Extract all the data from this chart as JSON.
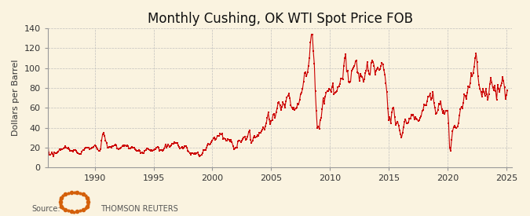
{
  "title": "Monthly Cushing, OK WTI Spot Price FOB",
  "ylabel": "Dollars per Barrel",
  "background_color": "#faf3e0",
  "plot_background_color": "#faf3e0",
  "line_color": "#cc0000",
  "marker_color": "#cc0000",
  "grid_color": "#bbbbbb",
  "title_fontsize": 12,
  "label_fontsize": 8,
  "tick_fontsize": 8,
  "xlim": [
    1986.0,
    2025.5
  ],
  "ylim": [
    0,
    140
  ],
  "yticks": [
    0,
    20,
    40,
    60,
    80,
    100,
    120,
    140
  ],
  "xticks": [
    1990,
    1995,
    2000,
    2005,
    2010,
    2015,
    2020,
    2025
  ],
  "prices": [
    25.9,
    15.5,
    12.6,
    12.8,
    15.0,
    13.5,
    11.6,
    15.1,
    14.9,
    14.9,
    15.2,
    16.1,
    18.7,
    17.8,
    18.3,
    18.6,
    19.5,
    19.9,
    21.4,
    20.3,
    19.5,
    19.9,
    18.9,
    17.3,
    17.0,
    16.8,
    16.2,
    17.9,
    17.4,
    17.0,
    15.6,
    14.9,
    13.7,
    13.4,
    14.1,
    16.3,
    17.9,
    17.9,
    19.5,
    20.1,
    20.0,
    20.0,
    20.1,
    18.5,
    19.6,
    20.0,
    20.2,
    21.1,
    22.8,
    22.0,
    20.4,
    18.5,
    17.0,
    16.9,
    18.7,
    27.3,
    33.5,
    35.2,
    32.2,
    27.3,
    25.2,
    20.4,
    19.9,
    20.8,
    20.9,
    20.3,
    21.6,
    21.9,
    22.4,
    23.2,
    22.5,
    19.1,
    18.8,
    19.1,
    19.4,
    20.3,
    21.4,
    22.3,
    22.0,
    22.3,
    21.9,
    22.6,
    21.8,
    19.5,
    19.0,
    20.0,
    20.5,
    20.3,
    19.9,
    18.9,
    17.9,
    17.3,
    16.9,
    17.6,
    16.7,
    14.4,
    15.0,
    14.7,
    14.8,
    17.0,
    17.9,
    19.0,
    19.6,
    18.4,
    17.4,
    17.2,
    18.0,
    17.1,
    18.0,
    18.6,
    18.5,
    19.9,
    20.8,
    19.9,
    17.0,
    18.0,
    17.6,
    17.0,
    18.0,
    19.1,
    22.9,
    20.0,
    21.3,
    23.5,
    21.2,
    22.0,
    22.7,
    24.0,
    23.8,
    25.6,
    24.5,
    25.2,
    25.1,
    22.2,
    20.5,
    19.3,
    19.9,
    20.8,
    19.6,
    19.9,
    21.3,
    21.9,
    20.2,
    17.0,
    15.9,
    14.8,
    13.1,
    14.6,
    14.9,
    14.1,
    14.2,
    13.4,
    14.9,
    15.0,
    12.6,
    11.3,
    12.0,
    13.0,
    14.7,
    17.6,
    17.9,
    17.9,
    20.0,
    22.5,
    23.8,
    22.9,
    24.4,
    25.6,
    27.2,
    29.4,
    30.3,
    27.7,
    28.8,
    32.0,
    31.7,
    31.8,
    33.9,
    33.1,
    34.4,
    28.4,
    29.6,
    28.7,
    27.2,
    27.5,
    28.6,
    27.6,
    26.5,
    27.7,
    25.7,
    22.0,
    18.8,
    19.4,
    19.7,
    20.4,
    26.3,
    27.0,
    27.0,
    25.9,
    26.9,
    28.4,
    30.5,
    31.0,
    28.2,
    29.0,
    31.2,
    35.8,
    37.8,
    28.2,
    25.0,
    27.0,
    30.6,
    31.6,
    30.2,
    31.0,
    32.5,
    32.1,
    34.7,
    35.1,
    36.6,
    38.3,
    40.3,
    38.5,
    41.5,
    44.9,
    49.9,
    55.2,
    48.5,
    43.4,
    46.8,
    47.9,
    53.4,
    54.2,
    49.8,
    55.7,
    59.4,
    64.9,
    65.6,
    62.3,
    58.3,
    61.0,
    65.5,
    63.5,
    60.4,
    66.7,
    70.8,
    71.8,
    74.4,
    69.9,
    62.9,
    60.0,
    59.0,
    60.7,
    58.1,
    59.3,
    60.5,
    63.9,
    63.3,
    67.8,
    74.1,
    75.4,
    79.0,
    86.1,
    94.9,
    96.0,
    91.7,
    95.4,
    101.8,
    110.0,
    125.4,
    133.9,
    133.4,
    116.7,
    104.1,
    76.6,
    57.3,
    40.1,
    41.7,
    39.1,
    47.9,
    49.8,
    59.0,
    69.6,
    64.2,
    71.0,
    75.0,
    76.8,
    77.2,
    79.4,
    78.2,
    76.4,
    81.2,
    84.4,
    73.7,
    75.1,
    76.2,
    76.7,
    81.0,
    81.8,
    84.2,
    89.3,
    89.5,
    88.6,
    102.0,
    110.0,
    113.9,
    96.2,
    97.2,
    86.1,
    85.5,
    86.3,
    97.1,
    98.6,
    100.3,
    102.2,
    107.0,
    108.0,
    96.0,
    95.3,
    87.3,
    94.6,
    92.2,
    91.3,
    86.5,
    88.8,
    94.8,
    97.5,
    106.2,
    97.2,
    94.5,
    93.8,
    105.2,
    107.6,
    106.3,
    102.3,
    93.8,
    97.6,
    98.7,
    100.3,
    97.9,
    99.0,
    102.0,
    105.2,
    103.5,
    97.8,
    93.2,
    84.4,
    75.8,
    59.3,
    47.3,
    50.8,
    44.8,
    55.3,
    59.3,
    60.1,
    50.7,
    42.9,
    44.9,
    46.5,
    42.5,
    37.2,
    33.5,
    30.3,
    34.7,
    40.7,
    46.0,
    48.8,
    44.9,
    44.7,
    45.1,
    49.6,
    49.4,
    52.9,
    52.6,
    53.4,
    48.8,
    51.1,
    49.3,
    48.2,
    46.8,
    47.9,
    49.8,
    51.7,
    57.0,
    57.9,
    63.7,
    62.8,
    62.9,
    66.3,
    71.6,
    71.2,
    74.2,
    68.5,
    69.4,
    76.4,
    65.2,
    60.1,
    53.8,
    55.0,
    57.8,
    63.9,
    63.7,
    66.3,
    58.8,
    55.0,
    56.9,
    54.0,
    57.0,
    57.5,
    57.5,
    44.8,
    20.1,
    16.7,
    27.8,
    36.3,
    40.6,
    42.5,
    40.3,
    39.8,
    41.0,
    44.7,
    52.2,
    58.6,
    61.4,
    59.3,
    65.2,
    73.7,
    72.0,
    68.7,
    75.2,
    81.4,
    80.6,
    84.7,
    95.0,
    91.6,
    95.0,
    101.0,
    109.6,
    114.8,
    105.8,
    91.6,
    83.0,
    79.0,
    76.1,
    71.0,
    79.0,
    76.0,
    72.5,
    79.0,
    73.5,
    68.0,
    74.0,
    84.0,
    90.0,
    85.8,
    80.5,
    78.0,
    82.0,
    77.0,
    68.0,
    83.0,
    79.0,
    76.0,
    82.0,
    84.5,
    91.0,
    87.0,
    80.5,
    69.0,
    73.0,
    78.0
  ],
  "start_year": 1986,
  "start_month": 1
}
